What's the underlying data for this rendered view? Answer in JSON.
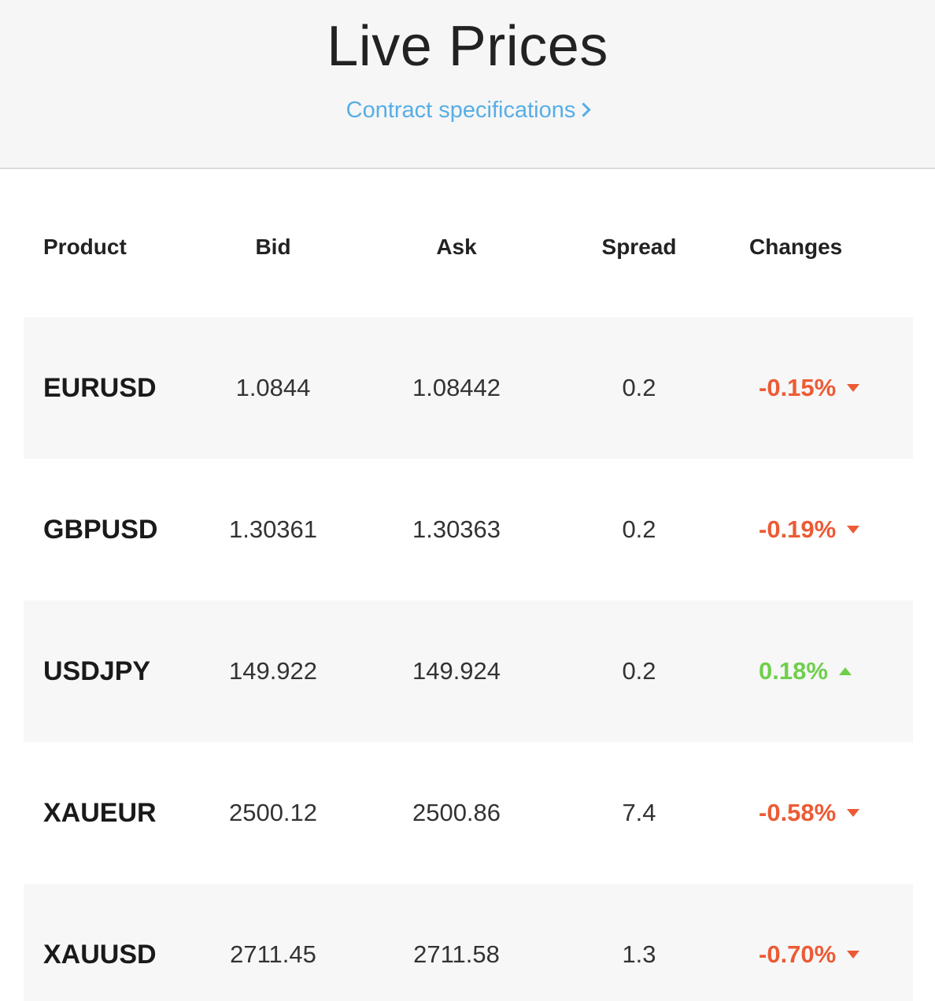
{
  "header": {
    "title": "Live Prices",
    "spec_link": "Contract specifications"
  },
  "table": {
    "columns": [
      "Product",
      "Bid",
      "Ask",
      "Spread",
      "Changes"
    ],
    "rows": [
      {
        "product": "EURUSD",
        "bid": "1.0844",
        "ask": "1.08442",
        "spread": "0.2",
        "change": "-0.15%",
        "direction": "down"
      },
      {
        "product": "GBPUSD",
        "bid": "1.30361",
        "ask": "1.30363",
        "spread": "0.2",
        "change": "-0.19%",
        "direction": "down"
      },
      {
        "product": "USDJPY",
        "bid": "149.922",
        "ask": "149.924",
        "spread": "0.2",
        "change": "0.18%",
        "direction": "up"
      },
      {
        "product": "XAUEUR",
        "bid": "2500.12",
        "ask": "2500.86",
        "spread": "7.4",
        "change": "-0.58%",
        "direction": "down"
      },
      {
        "product": "XAUUSD",
        "bid": "2711.45",
        "ask": "2711.58",
        "spread": "1.3",
        "change": "-0.70%",
        "direction": "down"
      }
    ]
  },
  "colors": {
    "negative": "#ec5b35",
    "positive": "#6fcf4b",
    "link": "#56aee6",
    "row_shade": "#f7f7f7"
  }
}
